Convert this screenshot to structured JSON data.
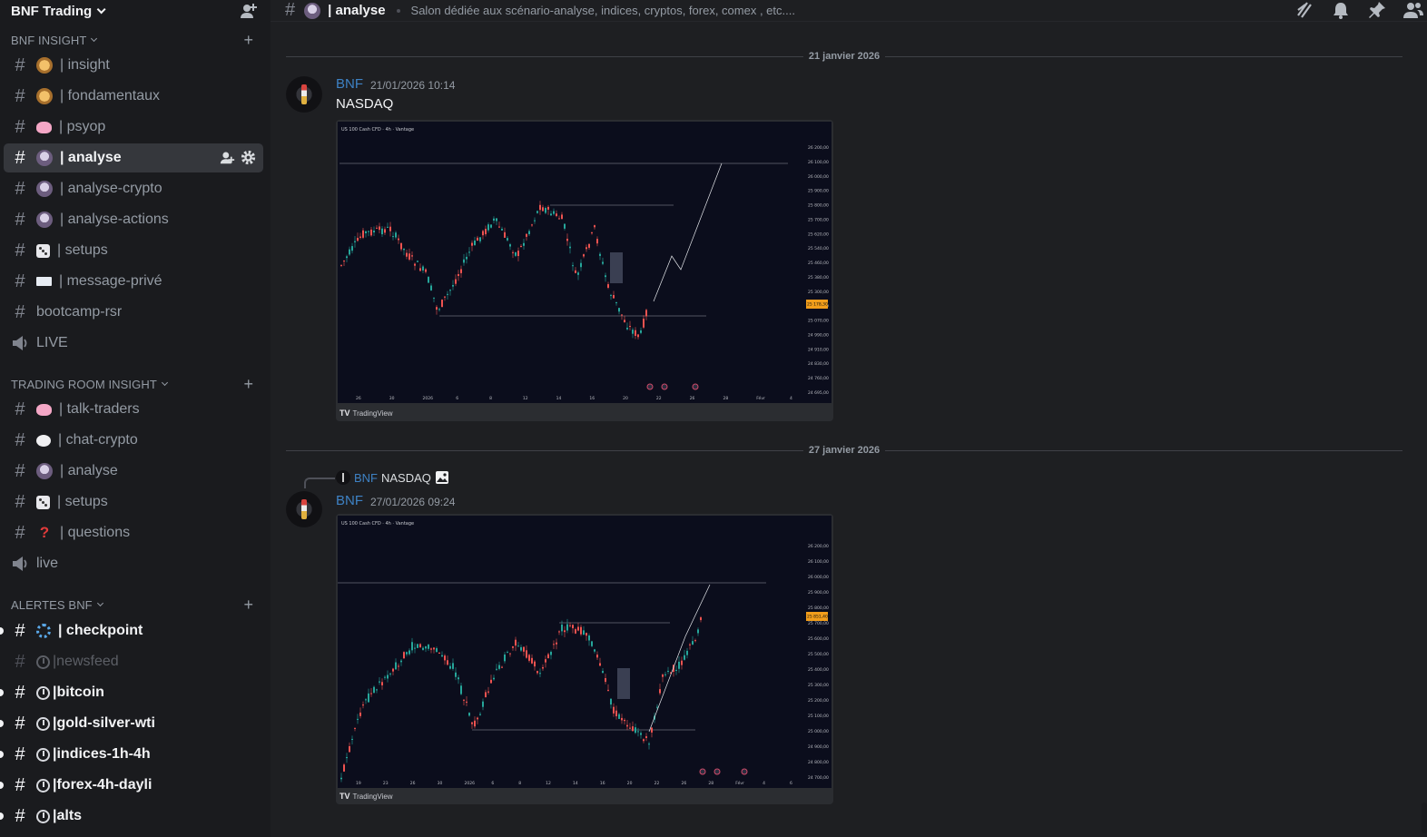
{
  "server": {
    "name": "BNF Trading"
  },
  "categories": [
    {
      "label": "BNF INSIGHT"
    },
    {
      "label": "TRADING ROOM INSIGHT"
    },
    {
      "label": "ALERTES BNF"
    }
  ],
  "channels": [
    {
      "label": "| insight",
      "emoji": "gold"
    },
    {
      "label": "| fondamentaux",
      "emoji": "gold"
    },
    {
      "label": "| psyop",
      "emoji": "brain"
    },
    {
      "label": "| analyse",
      "emoji": "astro"
    },
    {
      "label": "| analyse-crypto",
      "emoji": "astro"
    },
    {
      "label": "| analyse-actions",
      "emoji": "astro"
    },
    {
      "label": "| setups",
      "emoji": "dice"
    },
    {
      "label": "| message-privé",
      "emoji": "mail"
    },
    {
      "label": "bootcamp-rsr"
    },
    {
      "label": "LIVE"
    },
    {
      "label": "| talk-traders",
      "emoji": "brain"
    },
    {
      "label": "| chat-crypto",
      "emoji": "bubble"
    },
    {
      "label": "| analyse",
      "emoji": "astro"
    },
    {
      "label": "| setups",
      "emoji": "dice"
    },
    {
      "label": "| questions",
      "emoji": "question"
    },
    {
      "label": "live"
    },
    {
      "label": "| checkpoint",
      "emoji": "ring"
    },
    {
      "label": "|newsfeed",
      "emoji": "stopwatch"
    },
    {
      "label": "|bitcoin",
      "emoji": "stopwatch"
    },
    {
      "label": "|gold-silver-wti",
      "emoji": "stopwatch"
    },
    {
      "label": "|indices-1h-4h",
      "emoji": "stopwatch"
    },
    {
      "label": "|forex-4h-dayli",
      "emoji": "stopwatch"
    },
    {
      "label": "|alts",
      "emoji": "stopwatch"
    }
  ],
  "topbar": {
    "title": "| analyse",
    "topic": "Salon dédiée aux scénario-analyse, indices, cryptos, forex, comex , etc....",
    "icons": [
      "threads-icon",
      "bell-icon",
      "pin-icon",
      "members-icon"
    ]
  },
  "messages": [
    {
      "date": "21 janvier 2026",
      "author": "BNF",
      "timestamp": "21/01/2026 10:14",
      "text": "NASDAQ",
      "chart_credit": "TradingView",
      "chart_header": "US 100 Cash CFD · 4h · Vantage",
      "chart_x_ticks": [
        "26",
        "30",
        "2026",
        "6",
        "8",
        "12",
        "14",
        "16",
        "20",
        "22",
        "26",
        "28",
        "Févr",
        "4"
      ],
      "chart_y_ticks": [
        "26 200,00",
        "26 100,00",
        "26 000,00",
        "25 900,00",
        "25 800,00",
        "25 700,00",
        "25 620,00",
        "25 540,00",
        "25 460,00",
        "25 380,00",
        "25 300,00",
        "25 220,00",
        "25 070,00",
        "24 990,00",
        "24 910,00",
        "24 830,00",
        "24 760,00",
        "24 695,00"
      ],
      "chart_price_tag": "25 178,30"
    },
    {
      "date": "27 janvier 2026",
      "reply": {
        "author": "BNF",
        "text": "NASDAQ"
      },
      "author": "BNF",
      "timestamp": "27/01/2026 09:24",
      "chart_credit": "TradingView",
      "chart_header": "US 100 Cash CFD · 4h · Vantage",
      "chart_x_ticks": [
        "19",
        "23",
        "26",
        "30",
        "2026",
        "6",
        "8",
        "12",
        "14",
        "16",
        "20",
        "22",
        "26",
        "28",
        "Févr",
        "4",
        "6"
      ],
      "chart_y_ticks": [
        "26 200,00",
        "26 100,00",
        "26 000,00",
        "25 900,00",
        "25 800,00",
        "25 700,00",
        "25 600,00",
        "25 500,00",
        "25 400,00",
        "25 300,00",
        "25 200,00",
        "25 100,00",
        "25 000,00",
        "24 900,00",
        "24 800,00",
        "24 700,00"
      ],
      "chart_price_tag": "25 851,40"
    }
  ],
  "colors": {
    "accent": "#3e82c5",
    "bull": "#26a69a",
    "bear": "#ef5350",
    "chart_bg": "#0b0d1c"
  }
}
